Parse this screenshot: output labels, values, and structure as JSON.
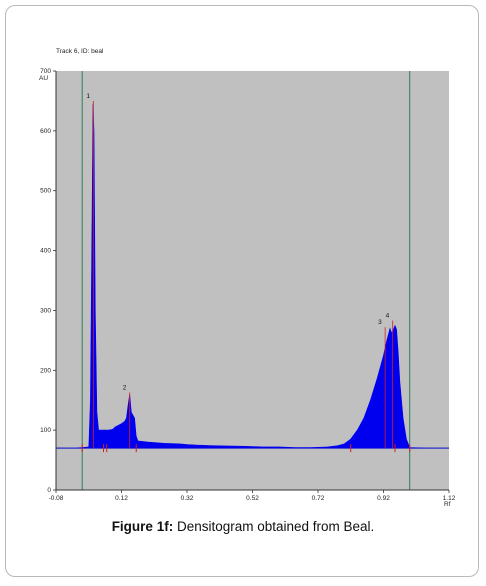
{
  "chart_data": {
    "type": "area",
    "panel_title": "Track 6, ID: beal",
    "ylabel": "AU",
    "xlabel": "Rf",
    "xlim": [
      -0.08,
      1.12
    ],
    "ylim": [
      0,
      700
    ],
    "x_ticks": [
      -0.08,
      0.12,
      0.32,
      0.52,
      0.72,
      0.92,
      1.12
    ],
    "x_tick_labels": [
      "-0.08",
      "0.12",
      "0.32",
      "0.52",
      "0.72",
      "0.92",
      "1.12"
    ],
    "y_ticks": [
      0,
      100,
      200,
      300,
      400,
      500,
      600,
      700
    ],
    "y_tick_labels": [
      "0",
      "100",
      "200",
      "300",
      "400",
      "500",
      "600",
      "700"
    ],
    "baseline": 70,
    "vertical_markers": [
      0.0,
      1.0
    ],
    "series": [
      {
        "color": "#0000ee",
        "x": [
          -0.08,
          -0.02,
          0.0,
          0.02,
          0.025,
          0.03,
          0.033,
          0.036,
          0.04,
          0.045,
          0.05,
          0.06,
          0.07,
          0.08,
          0.09,
          0.095,
          0.1,
          0.11,
          0.12,
          0.13,
          0.135,
          0.14,
          0.145,
          0.15,
          0.16,
          0.165,
          0.17,
          0.2,
          0.25,
          0.3,
          0.32,
          0.35,
          0.4,
          0.5,
          0.55,
          0.6,
          0.65,
          0.7,
          0.75,
          0.78,
          0.8,
          0.82,
          0.84,
          0.86,
          0.88,
          0.9,
          0.92,
          0.93,
          0.94,
          0.945,
          0.95,
          0.955,
          0.96,
          0.965,
          0.97,
          0.98,
          0.99,
          1.0,
          1.05,
          1.12
        ],
        "y": [
          70,
          70,
          71,
          72,
          150,
          450,
          645,
          600,
          300,
          130,
          100,
          100,
          100,
          100,
          101,
          102,
          105,
          108,
          111,
          115,
          120,
          142,
          160,
          130,
          120,
          90,
          82,
          80,
          78,
          77,
          76,
          75,
          74,
          73,
          72,
          72,
          71,
          71,
          72,
          74,
          77,
          85,
          100,
          120,
          150,
          185,
          225,
          250,
          270,
          262,
          268,
          275,
          268,
          230,
          180,
          120,
          85,
          71,
          70,
          70
        ]
      }
    ],
    "peak_labels": [
      {
        "label": "1",
        "x": 0.034,
        "y": 650
      },
      {
        "label": "2",
        "x": 0.145,
        "y": 163
      },
      {
        "label": "3",
        "x": 0.925,
        "y": 272
      },
      {
        "label": "4",
        "x": 0.948,
        "y": 283
      }
    ],
    "integration_markers": [
      0.0,
      0.065,
      0.075,
      0.165,
      0.82,
      0.955,
      1.0
    ]
  },
  "caption": {
    "label": "Figure 1f:",
    "text": " Densitogram obtained from Beal."
  }
}
